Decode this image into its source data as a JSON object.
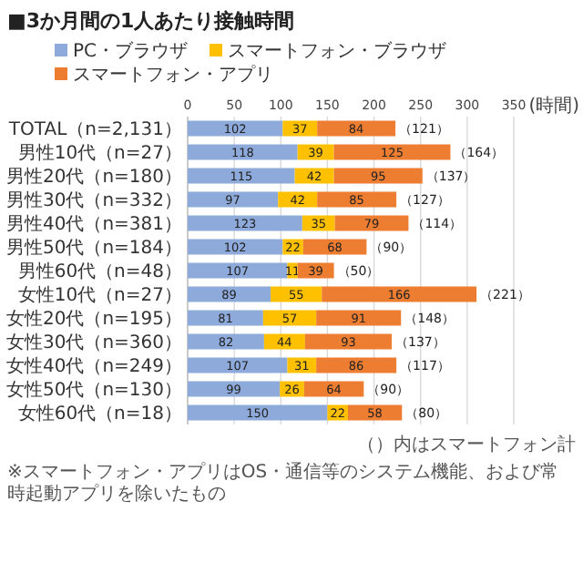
{
  "chart_data": {
    "type": "bar",
    "orientation": "horizontal",
    "stacked": true,
    "title": "■3か月間の1人あたり接触時間",
    "xlabel": "(時間)",
    "categories": [
      "TOTAL（n=2,131）",
      "男性10代（n=27）",
      "男性20代（n=180）",
      "男性30代（n=332）",
      "男性40代（n=381）",
      "男性50代（n=184）",
      "男性60代（n=48）",
      "女性10代（n=27）",
      "女性20代（n=195）",
      "女性30代（n=360）",
      "女性40代（n=249）",
      "女性50代（n=130）",
      "女性60代（n=18）"
    ],
    "series": [
      {
        "name": "PC・ブラウザ",
        "color": "#8eaadb",
        "values": [
          102,
          118,
          115,
          97,
          123,
          102,
          107,
          89,
          81,
          82,
          107,
          99,
          150
        ]
      },
      {
        "name": "スマートフォン・ブラウザ",
        "color": "#ffc000",
        "values": [
          37,
          39,
          42,
          42,
          35,
          22,
          11,
          55,
          57,
          44,
          31,
          26,
          22
        ]
      },
      {
        "name": "スマートフォン・アプリ",
        "color": "#ed7d31",
        "values": [
          84,
          125,
          95,
          85,
          79,
          68,
          39,
          166,
          91,
          93,
          86,
          64,
          58
        ]
      }
    ],
    "xlim": [
      0,
      350
    ],
    "xticks": [
      0,
      50,
      100,
      150,
      200,
      250,
      300,
      350
    ],
    "grid": "x",
    "legend": "top",
    "data_labels": true,
    "annotations": [
      {
        "text": "（121）",
        "x": 223,
        "y": "TOTAL（n=2,131）"
      },
      {
        "text": "（164）",
        "x": 282,
        "y": "男性10代（n=27）"
      },
      {
        "text": "（137）",
        "x": 252,
        "y": "男性20代（n=180）"
      },
      {
        "text": "（127）",
        "x": 224,
        "y": "男性30代（n=332）"
      },
      {
        "text": "（114）",
        "x": 237,
        "y": "男性40代（n=381）"
      },
      {
        "text": "（90）",
        "x": 192,
        "y": "男性50代（n=184）"
      },
      {
        "text": "（50）",
        "x": 157,
        "y": "男性60代（n=48）"
      },
      {
        "text": "（221）",
        "x": 310,
        "y": "女性10代（n=27）"
      },
      {
        "text": "（148）",
        "x": 229,
        "y": "女性20代（n=195）"
      },
      {
        "text": "（137）",
        "x": 219,
        "y": "女性30代（n=360）"
      },
      {
        "text": "（117）",
        "x": 224,
        "y": "女性40代（n=249）"
      },
      {
        "text": "（90）",
        "x": 189,
        "y": "女性50代（n=130）"
      },
      {
        "text": "（80）",
        "x": 230,
        "y": "女性60代（n=18）"
      },
      "（）内はスマートフォン計",
      "※スマートフォン・アプリはOS・通信等のシステム機能、および常時起動アプリを除いたもの"
    ]
  }
}
